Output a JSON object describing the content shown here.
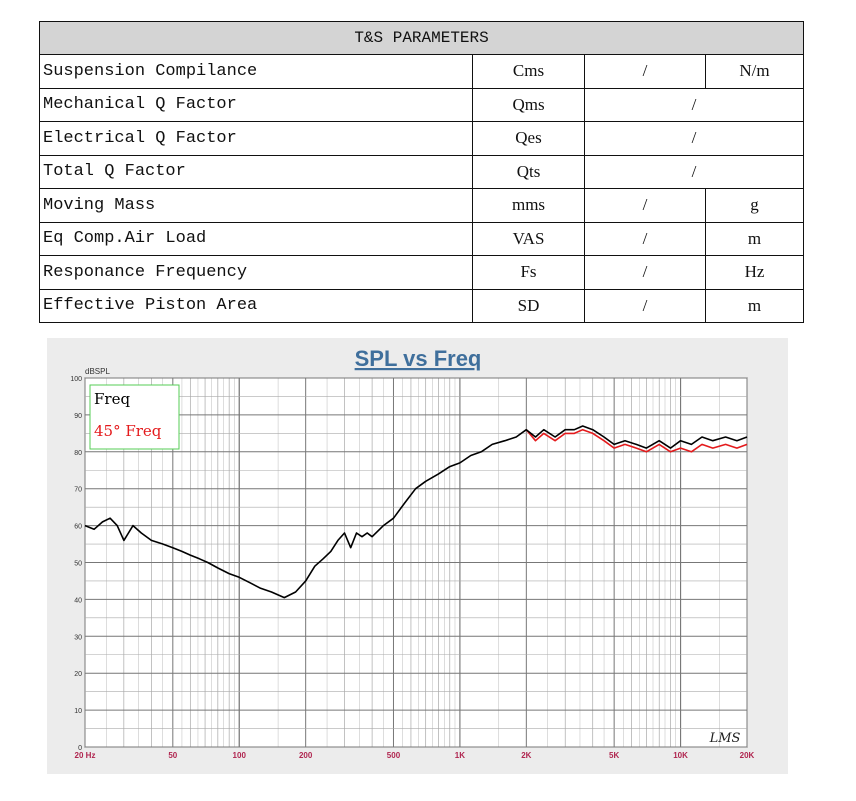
{
  "ts_table": {
    "title": "T&S PARAMETERS",
    "rows": [
      {
        "name": "Suspension Compilance",
        "symbol": "Cms",
        "value": "/",
        "unit": "N/m"
      },
      {
        "name": "Mechanical Q Factor",
        "symbol": "Qms",
        "value": "/",
        "unit": ""
      },
      {
        "name": "Electrical Q Factor",
        "symbol": "Qes",
        "value": "/",
        "unit": ""
      },
      {
        "name": "Total Q Factor",
        "symbol": "Qts",
        "value": "/",
        "unit": ""
      },
      {
        "name": "Moving Mass",
        "symbol": "mms",
        "value": "/",
        "unit": "g"
      },
      {
        "name": "Eq Comp.Air Load",
        "symbol": "VAS",
        "value": "/",
        "unit": "m"
      },
      {
        "name": "Responance Frequency",
        "symbol": "Fs",
        "value": "/",
        "unit": "Hz"
      },
      {
        "name": "Effective Piston Area",
        "symbol": "SD",
        "value": "/",
        "unit": "m"
      }
    ]
  },
  "chart_data": {
    "type": "line",
    "title": "SPL vs Freq",
    "ylabel": "dBSPL",
    "xlabel": "",
    "x_scale": "log",
    "xlim": [
      20,
      20000
    ],
    "ylim": [
      0,
      100
    ],
    "grid": true,
    "legend_placement": "top-left",
    "x_tick_labels": [
      "20 Hz",
      "50",
      "100",
      "200",
      "500",
      "1K",
      "2K",
      "5K",
      "10K",
      "20K"
    ],
    "x_tick_values": [
      20,
      50,
      100,
      200,
      500,
      1000,
      2000,
      5000,
      10000,
      20000
    ],
    "y_tick_labels": [
      "0",
      "10",
      "20",
      "30",
      "40",
      "50",
      "60",
      "70",
      "80",
      "90",
      "100"
    ],
    "watermark": "LMS",
    "series": [
      {
        "name": "Freq",
        "color": "#000000",
        "x": [
          20,
          22,
          24,
          26,
          28,
          30,
          33,
          36,
          40,
          45,
          50,
          55,
          60,
          66,
          72,
          80,
          90,
          100,
          112,
          125,
          140,
          160,
          180,
          200,
          220,
          240,
          260,
          280,
          300,
          320,
          340,
          360,
          380,
          400,
          450,
          500,
          560,
          630,
          700,
          800,
          900,
          1000,
          1120,
          1250,
          1400,
          1600,
          1800,
          2000,
          2200,
          2400,
          2700,
          3000,
          3300,
          3600,
          4000,
          4500,
          5000,
          5600,
          6300,
          7000,
          8000,
          9000,
          10000,
          11200,
          12500,
          14000,
          16000,
          18000,
          20000
        ],
        "y": [
          60,
          59,
          61,
          62,
          60,
          56,
          60,
          58,
          56,
          55,
          54,
          53,
          52,
          51,
          50,
          48.5,
          47,
          46,
          44.5,
          43,
          42,
          40.5,
          42,
          45,
          49,
          51,
          53,
          56,
          58,
          54,
          58,
          57,
          58,
          57,
          60,
          62,
          66,
          70,
          72,
          74,
          76,
          77,
          79,
          80,
          82,
          83,
          84,
          86,
          84,
          86,
          84,
          86,
          86,
          87,
          86,
          84,
          82,
          83,
          82,
          81,
          83,
          81,
          83,
          82,
          84,
          83,
          84,
          83,
          84
        ]
      },
      {
        "name": "45° Freq",
        "color": "#e41a1c",
        "x": [
          2000,
          2200,
          2400,
          2700,
          3000,
          3300,
          3600,
          4000,
          4500,
          5000,
          5600,
          6300,
          7000,
          8000,
          9000,
          10000,
          11200,
          12500,
          14000,
          16000,
          18000,
          20000
        ],
        "y": [
          86,
          83,
          85,
          83,
          85,
          85,
          86,
          85,
          83,
          81,
          82,
          81,
          80,
          82,
          80,
          81,
          80,
          82,
          81,
          82,
          81,
          82
        ]
      }
    ]
  }
}
